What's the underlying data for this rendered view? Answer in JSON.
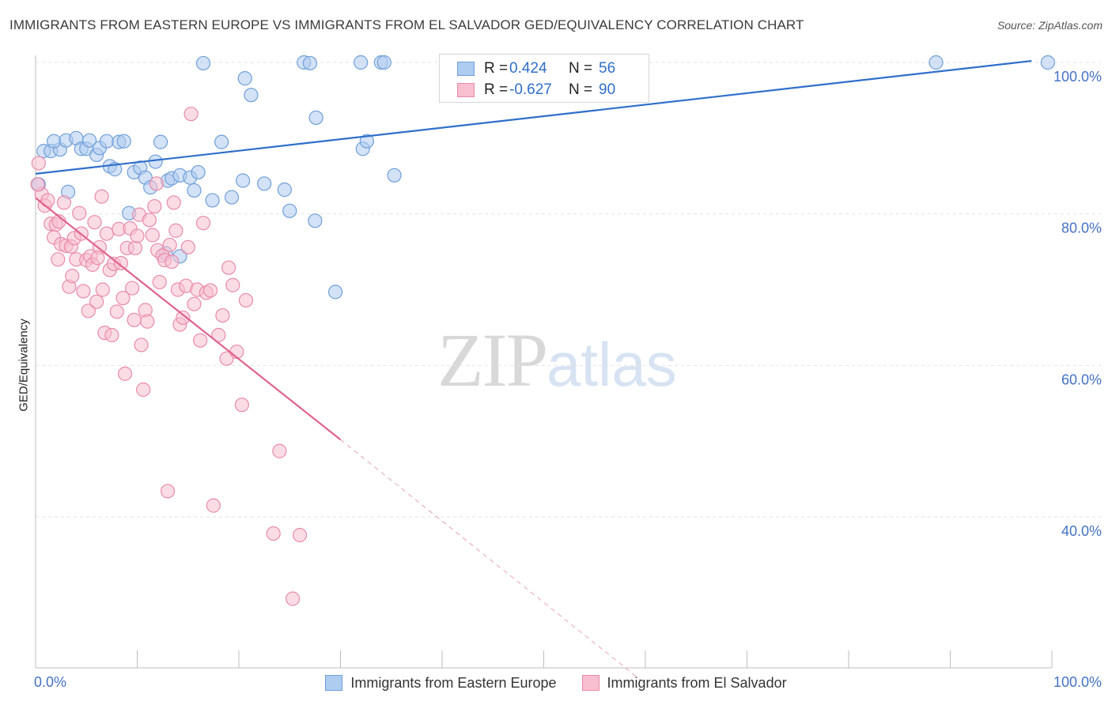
{
  "title": "IMMIGRANTS FROM EASTERN EUROPE VS IMMIGRANTS FROM EL SALVADOR GED/EQUIVALENCY CORRELATION CHART",
  "source": "Source: ZipAtlas.com",
  "watermark": {
    "zip": "ZIP",
    "atlas": "atlas"
  },
  "legend": {
    "rows": [
      {
        "r_label": "R =",
        "r_value": "0.424",
        "n_label": "N =",
        "n_value": "56"
      },
      {
        "r_label": "R =",
        "r_value": "-0.627",
        "n_label": "N =",
        "n_value": "90"
      }
    ]
  },
  "bottom_legend": [
    "Immigrants from Eastern Europe",
    "Immigrants from El Salvador"
  ],
  "colors": {
    "blue_fill": "#aecbf0",
    "blue_stroke": "#6f9fd8",
    "blue_line": "#2f6fcb",
    "pink_fill": "#f7bfd0",
    "pink_stroke": "#e88aa9",
    "pink_line": "#e0628c",
    "tick_text": "#4472c4",
    "grid": "#e2e2e2"
  },
  "chart_data": {
    "type": "scatter",
    "title": "IMMIGRANTS FROM EASTERN EUROPE VS IMMIGRANTS FROM EL SALVADOR GED/EQUIVALENCY CORRELATION CHART",
    "xlabel": "",
    "ylabel": "GED/Equivalency",
    "xlim": [
      0,
      100
    ],
    "ylim": [
      20,
      102
    ],
    "x_tick_labels": [
      "0.0%",
      "100.0%"
    ],
    "y_ticks": [
      {
        "value": 100,
        "label": "100.0%"
      },
      {
        "value": 80,
        "label": "80.0%"
      },
      {
        "value": 60,
        "label": "60.0%"
      },
      {
        "value": 40,
        "label": "40.0%"
      }
    ],
    "grid": true,
    "legend_position": "bottom",
    "series": [
      {
        "name": "Immigrants from Eastern Europe",
        "color": "blue",
        "trend": {
          "x": [
            0,
            98
          ],
          "y": [
            85.3,
            100.2
          ]
        },
        "points": [
          [
            0.3,
            83.9
          ],
          [
            0.8,
            88.3
          ],
          [
            1.5,
            88.3
          ],
          [
            2.4,
            88.5
          ],
          [
            3.2,
            82.9
          ],
          [
            1.8,
            89.6
          ],
          [
            3.0,
            89.7
          ],
          [
            4.0,
            90.0
          ],
          [
            4.5,
            88.6
          ],
          [
            5.0,
            88.6
          ],
          [
            5.3,
            89.7
          ],
          [
            6.0,
            87.8
          ],
          [
            6.3,
            88.7
          ],
          [
            7.0,
            89.6
          ],
          [
            7.3,
            86.3
          ],
          [
            7.8,
            85.9
          ],
          [
            8.2,
            89.5
          ],
          [
            8.7,
            89.6
          ],
          [
            9.2,
            80.1
          ],
          [
            9.7,
            85.5
          ],
          [
            10.3,
            86.1
          ],
          [
            10.8,
            84.8
          ],
          [
            11.3,
            83.5
          ],
          [
            11.8,
            86.9
          ],
          [
            12.3,
            89.5
          ],
          [
            13.0,
            84.4
          ],
          [
            13.4,
            84.7
          ],
          [
            14.2,
            85.1
          ],
          [
            15.2,
            84.8
          ],
          [
            15.6,
            83.1
          ],
          [
            16.0,
            85.5
          ],
          [
            16.5,
            99.9
          ],
          [
            17.4,
            81.8
          ],
          [
            18.3,
            89.5
          ],
          [
            19.3,
            82.2
          ],
          [
            20.4,
            84.4
          ],
          [
            20.6,
            97.9
          ],
          [
            21.2,
            95.7
          ],
          [
            22.5,
            84.0
          ],
          [
            24.5,
            83.2
          ],
          [
            25.0,
            80.4
          ],
          [
            26.4,
            100.0
          ],
          [
            27.5,
            79.1
          ],
          [
            27.0,
            99.9
          ],
          [
            27.6,
            92.7
          ],
          [
            29.5,
            69.7
          ],
          [
            32.0,
            100.0
          ],
          [
            32.2,
            88.6
          ],
          [
            32.6,
            89.6
          ],
          [
            34.0,
            100.0
          ],
          [
            34.3,
            100.0
          ],
          [
            35.3,
            85.1
          ],
          [
            88.6,
            100.0
          ],
          [
            99.6,
            100.0
          ],
          [
            12.8,
            74.8
          ],
          [
            14.2,
            74.4
          ]
        ]
      },
      {
        "name": "Immigrants from El Salvador",
        "color": "pink",
        "trend": {
          "x": [
            0,
            30
          ],
          "y": [
            82.1,
            50.2
          ]
        },
        "trend_extension": {
          "x": [
            30,
            59.5
          ],
          "y": [
            50.2,
            18.5
          ]
        },
        "points": [
          [
            0.3,
            86.7
          ],
          [
            0.6,
            82.6
          ],
          [
            0.9,
            81.1
          ],
          [
            1.2,
            81.8
          ],
          [
            1.5,
            78.7
          ],
          [
            1.8,
            76.9
          ],
          [
            2.0,
            78.6
          ],
          [
            2.3,
            79.0
          ],
          [
            2.5,
            76.0
          ],
          [
            2.8,
            81.5
          ],
          [
            3.0,
            75.8
          ],
          [
            3.3,
            70.4
          ],
          [
            3.5,
            75.7
          ],
          [
            3.8,
            76.8
          ],
          [
            4.0,
            74.0
          ],
          [
            4.3,
            80.1
          ],
          [
            4.5,
            77.4
          ],
          [
            4.7,
            69.8
          ],
          [
            5.0,
            73.9
          ],
          [
            5.2,
            67.2
          ],
          [
            5.4,
            74.4
          ],
          [
            5.6,
            73.3
          ],
          [
            5.8,
            78.9
          ],
          [
            6.0,
            68.4
          ],
          [
            6.3,
            75.6
          ],
          [
            6.5,
            82.3
          ],
          [
            6.6,
            70.0
          ],
          [
            6.8,
            64.3
          ],
          [
            7.0,
            77.4
          ],
          [
            7.3,
            72.6
          ],
          [
            7.5,
            64.0
          ],
          [
            7.7,
            73.4
          ],
          [
            8.0,
            67.1
          ],
          [
            8.2,
            78.0
          ],
          [
            8.4,
            73.5
          ],
          [
            8.6,
            68.9
          ],
          [
            8.8,
            58.9
          ],
          [
            9.0,
            75.5
          ],
          [
            9.3,
            78.1
          ],
          [
            9.5,
            70.2
          ],
          [
            9.8,
            75.5
          ],
          [
            10.0,
            77.1
          ],
          [
            10.2,
            79.9
          ],
          [
            10.4,
            62.7
          ],
          [
            10.6,
            56.8
          ],
          [
            10.8,
            67.3
          ],
          [
            11.0,
            65.8
          ],
          [
            11.2,
            79.2
          ],
          [
            11.5,
            77.2
          ],
          [
            11.7,
            81.0
          ],
          [
            12.0,
            75.2
          ],
          [
            12.2,
            71.0
          ],
          [
            12.5,
            74.5
          ],
          [
            12.7,
            73.9
          ],
          [
            13.0,
            43.4
          ],
          [
            13.2,
            75.9
          ],
          [
            13.4,
            73.7
          ],
          [
            13.6,
            81.5
          ],
          [
            13.8,
            77.8
          ],
          [
            14.0,
            70.0
          ],
          [
            14.2,
            65.4
          ],
          [
            14.5,
            66.3
          ],
          [
            14.8,
            70.5
          ],
          [
            15.0,
            75.6
          ],
          [
            15.3,
            93.2
          ],
          [
            15.6,
            68.1
          ],
          [
            15.9,
            70.0
          ],
          [
            16.2,
            63.3
          ],
          [
            16.5,
            78.8
          ],
          [
            16.8,
            69.6
          ],
          [
            17.2,
            69.9
          ],
          [
            17.5,
            41.5
          ],
          [
            18.0,
            64.0
          ],
          [
            18.4,
            66.6
          ],
          [
            18.8,
            60.9
          ],
          [
            19.0,
            72.9
          ],
          [
            19.4,
            70.6
          ],
          [
            19.8,
            61.8
          ],
          [
            20.3,
            54.8
          ],
          [
            20.7,
            68.6
          ],
          [
            23.4,
            37.8
          ],
          [
            24.0,
            48.7
          ],
          [
            25.3,
            29.2
          ],
          [
            26.0,
            37.6
          ],
          [
            0.2,
            83.9
          ],
          [
            2.2,
            74.0
          ],
          [
            6.1,
            74.2
          ],
          [
            11.9,
            84.0
          ],
          [
            3.6,
            71.8
          ],
          [
            9.7,
            66.0
          ]
        ]
      }
    ]
  }
}
